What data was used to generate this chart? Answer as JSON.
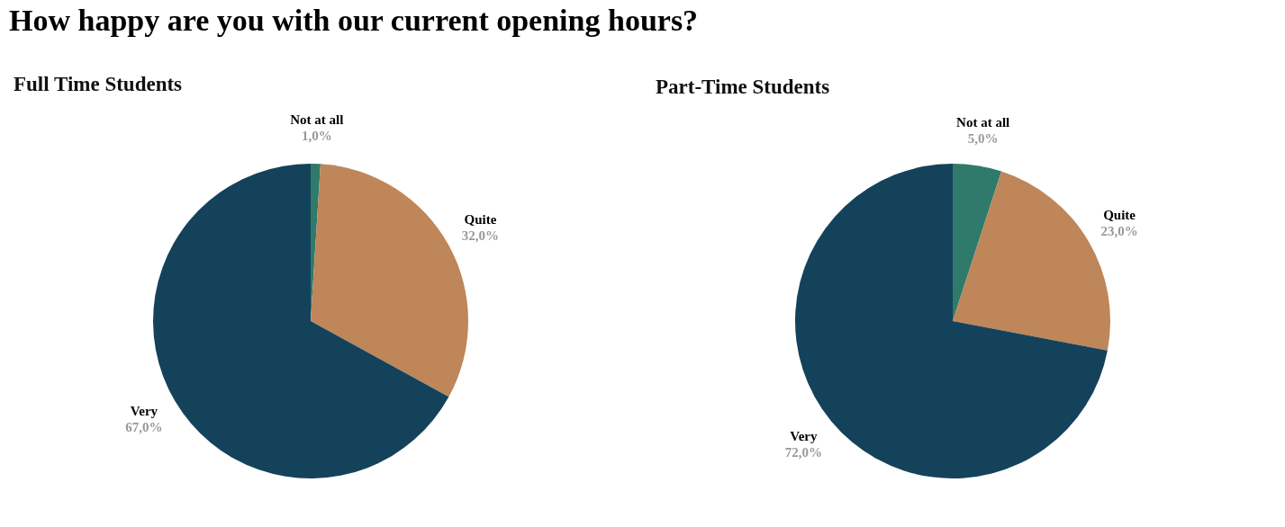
{
  "chart_data": [
    {
      "type": "pie",
      "title": "How happy are you with our current opening hours?",
      "subtitle": "Full Time Students",
      "categories": [
        "Not at all",
        "Quite",
        "Very"
      ],
      "values": [
        1,
        32,
        67
      ],
      "colors": [
        "#2f7a6a",
        "#be8659",
        "#15425b"
      ],
      "value_labels": [
        "1,0%",
        "32,0%",
        "67,0%"
      ]
    },
    {
      "type": "pie",
      "title": "Part-Time Students",
      "categories": [
        "Not at all",
        "Quite",
        "Very"
      ],
      "values": [
        5,
        23,
        72
      ],
      "colors": [
        "#2f7a6a",
        "#be8659",
        "#15425b"
      ],
      "value_labels": [
        "5,0%",
        "23,0%",
        "72,0%"
      ]
    }
  ]
}
